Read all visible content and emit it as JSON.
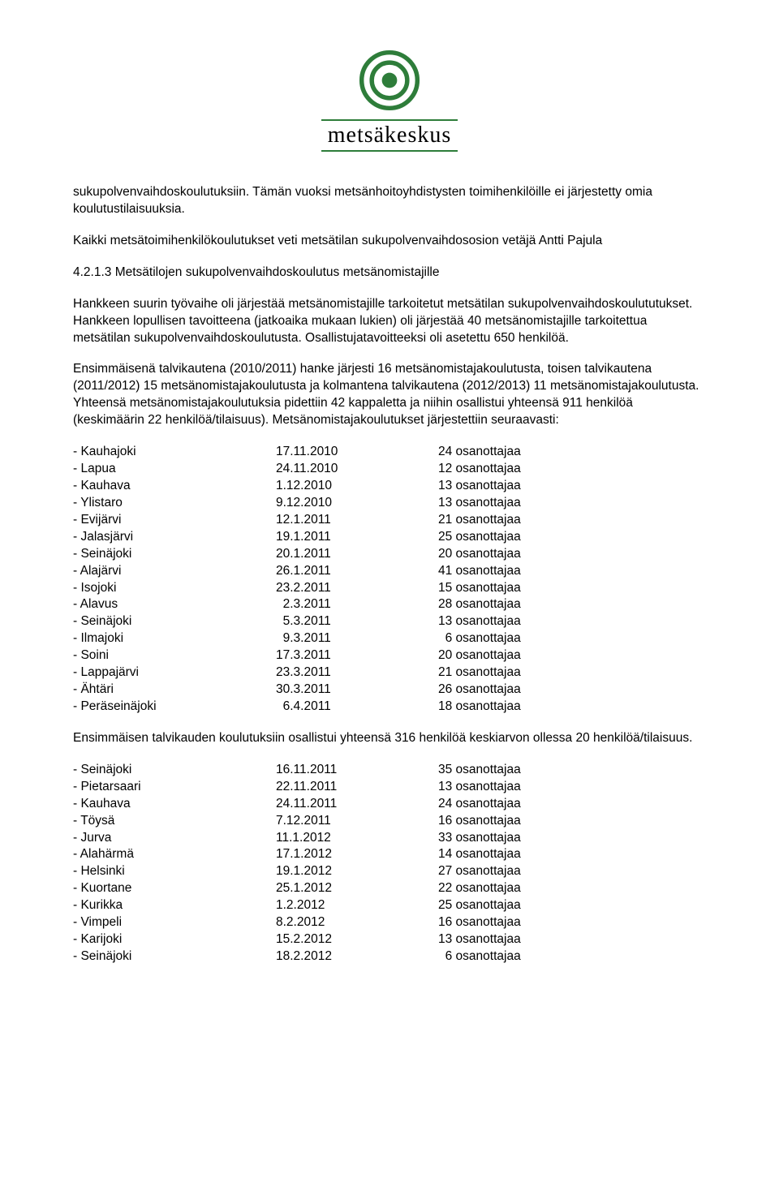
{
  "logo": {
    "text": "metsäkeskus",
    "ring_color": "#2e7d3a",
    "center_color": "#2e7d3a"
  },
  "p1": "sukupolvenvaihdoskoulutuksiin. Tämän vuoksi metsänhoitoyhdistysten toimihenkilöille ei järjestetty omia koulutustilaisuuksia.",
  "p2": "Kaikki metsätoimihenkilökoulutukset veti metsätilan sukupolvenvaihdososion vetäjä Antti Pajula",
  "h1": "4.2.1.3 Metsätilojen sukupolvenvaihdoskoulutus metsänomistajille",
  "p3": "Hankkeen suurin työvaihe oli järjestää metsänomistajille tarkoitetut metsätilan sukupolvenvaihdoskoulututukset. Hankkeen lopullisen tavoitteena (jatkoaika mukaan lukien) oli järjestää 40 metsänomistajille tarkoitettua metsätilan sukupolvenvaihdoskoulutusta. Osallistujatavoitteeksi oli asetettu 650 henkilöä.",
  "p4": "Ensimmäisenä talvikautena (2010/2011) hanke järjesti 16 metsänomistajakoulutusta, toisen talvikautena (2011/2012) 15 metsänomistajakoulutusta ja kolmantena talvikautena (2012/2013)  11 metsänomistajakoulutusta. Yhteensä metsänomistajakoulutuksia pidettiin 42 kappaletta ja niihin osallistui yhteensä 911 henkilöä (keskimäärin 22 henkilöä/tilaisuus). Metsänomistajakoulutukset järjestettiin seuraavasti:",
  "table1": {
    "rows": [
      {
        "place": "- Kauhajoki",
        "date": "17.11.2010",
        "att": "24 osanottajaa"
      },
      {
        "place": "- Lapua",
        "date": "24.11.2010",
        "att": "12 osanottajaa"
      },
      {
        "place": "- Kauhava",
        "date": "1.12.2010",
        "att": "13 osanottajaa"
      },
      {
        "place": "- Ylistaro",
        "date": "9.12.2010",
        "att": "13 osanottajaa"
      },
      {
        "place": "- Evijärvi",
        "date": "12.1.2011",
        "att": "21 osanottajaa"
      },
      {
        "place": "- Jalasjärvi",
        "date": "19.1.2011",
        "att": "25 osanottajaa"
      },
      {
        "place": "- Seinäjoki",
        "date": "20.1.2011",
        "att": "20 osanottajaa"
      },
      {
        "place": "- Alajärvi",
        "date": "26.1.2011",
        "att": "41 osanottajaa"
      },
      {
        "place": "- Isojoki",
        "date": "23.2.2011",
        "att": "15 osanottajaa"
      },
      {
        "place": "- Alavus",
        "date": "  2.3.2011",
        "att": "28 osanottajaa"
      },
      {
        "place": "- Seinäjoki",
        "date": "  5.3.2011",
        "att": "13 osanottajaa"
      },
      {
        "place": "- Ilmajoki",
        "date": "  9.3.2011",
        "att": "  6 osanottajaa"
      },
      {
        "place": "- Soini",
        "date": "17.3.2011",
        "att": "20 osanottajaa"
      },
      {
        "place": "- Lappajärvi",
        "date": "23.3.2011",
        "att": "21 osanottajaa"
      },
      {
        "place": "- Ähtäri",
        "date": "30.3.2011",
        "att": "26 osanottajaa"
      },
      {
        "place": "- Peräseinäjoki",
        "date": "  6.4.2011",
        "att": "18 osanottajaa"
      }
    ]
  },
  "p5": "Ensimmäisen talvikauden koulutuksiin osallistui yhteensä 316  henkilöä keskiarvon ollessa 20 henkilöä/tilaisuus.",
  "table2": {
    "rows": [
      {
        "place": "- Seinäjoki",
        "date": "16.11.2011",
        "att": "35 osanottajaa"
      },
      {
        "place": "- Pietarsaari",
        "date": "22.11.2011",
        "att": "13 osanottajaa"
      },
      {
        "place": "- Kauhava",
        "date": "24.11.2011",
        "att": "24 osanottajaa"
      },
      {
        "place": "- Töysä",
        "date": "7.12.2011",
        "att": "16 osanottajaa"
      },
      {
        "place": "- Jurva",
        "date": "11.1.2012",
        "att": "33 osanottajaa"
      },
      {
        "place": "- Alahärmä",
        "date": "17.1.2012",
        "att": "14 osanottajaa"
      },
      {
        "place": "- Helsinki",
        "date": "19.1.2012",
        "att": "27 osanottajaa"
      },
      {
        "place": "- Kuortane",
        "date": "25.1.2012",
        "att": "22 osanottajaa"
      },
      {
        "place": "- Kurikka",
        "date": "1.2.2012",
        "att": "25 osanottajaa"
      },
      {
        "place": "- Vimpeli",
        "date": "8.2.2012",
        "att": "16 osanottajaa"
      },
      {
        "place": "- Karijoki",
        "date": "15.2.2012",
        "att": "13 osanottajaa"
      },
      {
        "place": "- Seinäjoki",
        "date": "18.2.2012",
        "att": "  6 osanottajaa"
      }
    ]
  }
}
